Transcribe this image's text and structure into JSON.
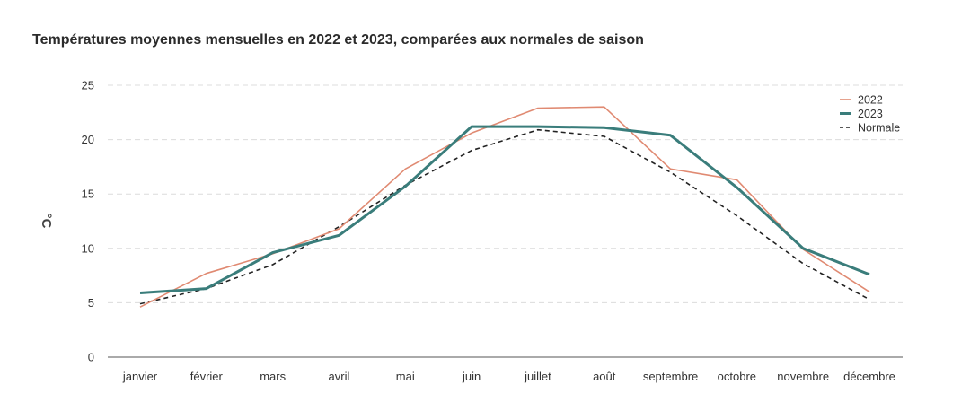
{
  "chart_data": {
    "type": "line",
    "title": "Températures moyennes mensuelles en 2022 et 2023, comparées aux normales de saison",
    "xlabel": "",
    "ylabel": "°C",
    "ylim": [
      0,
      25
    ],
    "yticks": [
      0,
      5,
      10,
      15,
      20,
      25
    ],
    "grid": true,
    "legend_position": "top-right",
    "categories": [
      "janvier",
      "février",
      "mars",
      "avril",
      "mai",
      "juin",
      "juillet",
      "août",
      "septembre",
      "octobre",
      "novembre",
      "décembre"
    ],
    "series": [
      {
        "name": "2022",
        "color": "#e08a72",
        "style": "solid-thin",
        "values": [
          4.6,
          7.7,
          9.5,
          11.8,
          17.3,
          20.6,
          22.9,
          23.0,
          17.3,
          16.3,
          9.9,
          6.0
        ]
      },
      {
        "name": "2023",
        "color": "#3a7d7b",
        "style": "solid-thick",
        "values": [
          5.9,
          6.3,
          9.6,
          11.2,
          15.7,
          21.2,
          21.2,
          21.1,
          20.4,
          15.6,
          10.0,
          7.6
        ]
      },
      {
        "name": "Normale",
        "color": "#222222",
        "style": "dashed",
        "values": [
          4.9,
          6.3,
          8.5,
          12.0,
          15.8,
          19.0,
          20.9,
          20.3,
          17.0,
          13.0,
          8.6,
          5.3
        ]
      }
    ]
  }
}
